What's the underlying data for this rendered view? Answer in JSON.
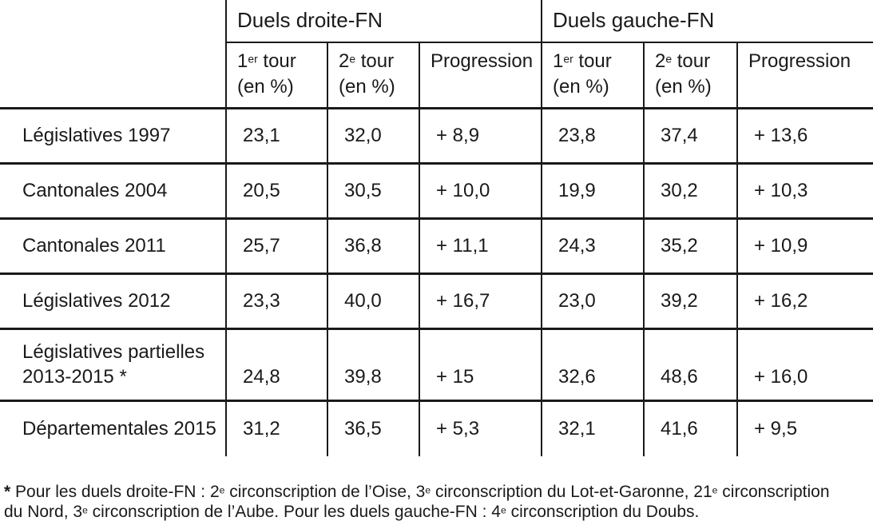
{
  "table": {
    "groups": [
      {
        "label": "Duels droite-FN"
      },
      {
        "label": "Duels gauche-FN"
      }
    ],
    "subheaders": [
      "1^er^ tour\n(en %)",
      "2^e^ tour\n(en %)",
      "Progression",
      "1^er^ tour\n(en %)",
      "2^e^ tour\n(en %)",
      "Progression"
    ],
    "rows": [
      {
        "label": "Législatives 1997",
        "values": [
          "23,1",
          "32,0",
          "+ 8,9",
          "23,8",
          "37,4",
          "+ 13,6"
        ]
      },
      {
        "label": "Cantonales 2004",
        "values": [
          "20,5",
          "30,5",
          "+ 10,0",
          "19,9",
          "30,2",
          "+ 10,3"
        ]
      },
      {
        "label": "Cantonales 2011",
        "values": [
          "25,7",
          "36,8",
          "+ 11,1",
          "24,3",
          "35,2",
          "+ 10,9"
        ]
      },
      {
        "label": "Législatives 2012",
        "values": [
          "23,3",
          "40,0",
          "+ 16,7",
          "23,0",
          "39,2",
          "+ 16,2"
        ]
      },
      {
        "label": "Législatives partielles\n2013-2015 *",
        "values": [
          "24,8",
          "39,8",
          "+ 15",
          "32,6",
          "48,6",
          "+ 16,0"
        ]
      },
      {
        "label": "Départementales 2015",
        "values": [
          "31,2",
          "36,5",
          "+ 5,3",
          "32,1",
          "41,6",
          "+ 9,5"
        ]
      }
    ]
  },
  "footnote": {
    "marker": "*",
    "text": "Pour les duels droite-FN : 2^e^ circonscription de l’Oise, 3^e^ circonscription du Lot-et-Garonne, 21^e^ circonscription\ndu Nord, 3^e^ circonscription de l’Aube. Pour les duels gauche-FN : 4^e^ circonscription du Doubs."
  },
  "colors": {
    "text": "#1a1a1a",
    "border": "#1a1a1a",
    "background": "#ffffff"
  },
  "chart_data": {
    "type": "table",
    "title": "",
    "column_groups": [
      {
        "label": "Duels droite-FN",
        "columns": [
          "1er tour (en %)",
          "2e tour (en %)",
          "Progression"
        ]
      },
      {
        "label": "Duels gauche-FN",
        "columns": [
          "1er tour (en %)",
          "2e tour (en %)",
          "Progression"
        ]
      }
    ],
    "rows": [
      {
        "label": "Législatives 1997",
        "droite": [
          23.1,
          32.0,
          8.9
        ],
        "gauche": [
          23.8,
          37.4,
          13.6
        ]
      },
      {
        "label": "Cantonales 2004",
        "droite": [
          20.5,
          30.5,
          10.0
        ],
        "gauche": [
          19.9,
          30.2,
          10.3
        ]
      },
      {
        "label": "Cantonales 2011",
        "droite": [
          25.7,
          36.8,
          11.1
        ],
        "gauche": [
          24.3,
          35.2,
          10.9
        ]
      },
      {
        "label": "Législatives 2012",
        "droite": [
          23.3,
          40.0,
          16.7
        ],
        "gauche": [
          23.0,
          39.2,
          16.2
        ]
      },
      {
        "label": "Législatives partielles 2013-2015 *",
        "droite": [
          24.8,
          39.8,
          15.0
        ],
        "gauche": [
          32.6,
          48.6,
          16.0
        ]
      },
      {
        "label": "Départementales 2015",
        "droite": [
          31.2,
          36.5,
          5.3
        ],
        "gauche": [
          32.1,
          41.6,
          9.5
        ]
      }
    ],
    "footnote": "* Pour les duels droite-FN : 2e circonscription de l’Oise, 3e circonscription du Lot-et-Garonne, 21e circonscription du Nord, 3e circonscription de l’Aube. Pour les duels gauche-FN : 4e circonscription du Doubs."
  }
}
